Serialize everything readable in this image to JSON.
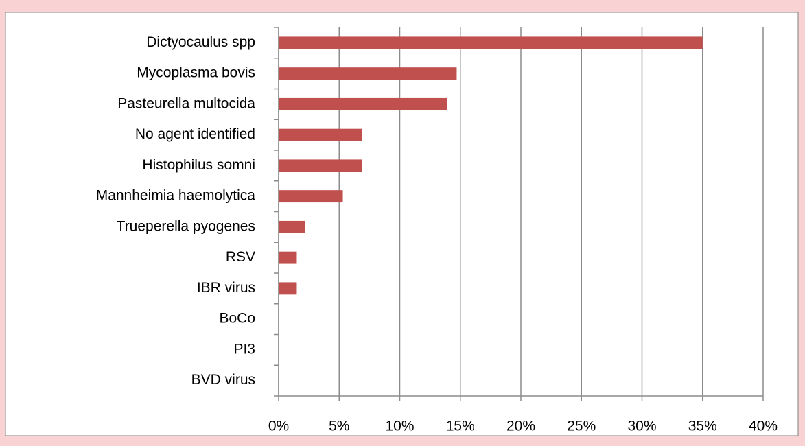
{
  "chart_data": {
    "type": "bar",
    "orientation": "horizontal",
    "categories": [
      "Dictyocaulus spp",
      "Mycoplasma bovis",
      "Pasteurella multocida",
      "No agent identified",
      "Histophilus somni",
      "Mannheimia haemolytica",
      "Trueperella pyogenes",
      "RSV",
      "IBR virus",
      "BoCo",
      "PI3",
      "BVD virus"
    ],
    "values": [
      35,
      14.7,
      13.9,
      6.9,
      6.9,
      5.3,
      2.2,
      1.5,
      1.5,
      0,
      0,
      0
    ],
    "color": "#c0504d",
    "xlim": [
      0,
      40
    ],
    "xticks": [
      {
        "value": 0,
        "label": "0%"
      },
      {
        "value": 5,
        "label": "5%"
      },
      {
        "value": 10,
        "label": "10%"
      },
      {
        "value": 15,
        "label": "15%"
      },
      {
        "value": 20,
        "label": "20%"
      },
      {
        "value": 25,
        "label": "25%"
      },
      {
        "value": 30,
        "label": "30%"
      },
      {
        "value": 35,
        "label": "35%"
      },
      {
        "value": 40,
        "label": "40%"
      }
    ],
    "grid": true
  }
}
